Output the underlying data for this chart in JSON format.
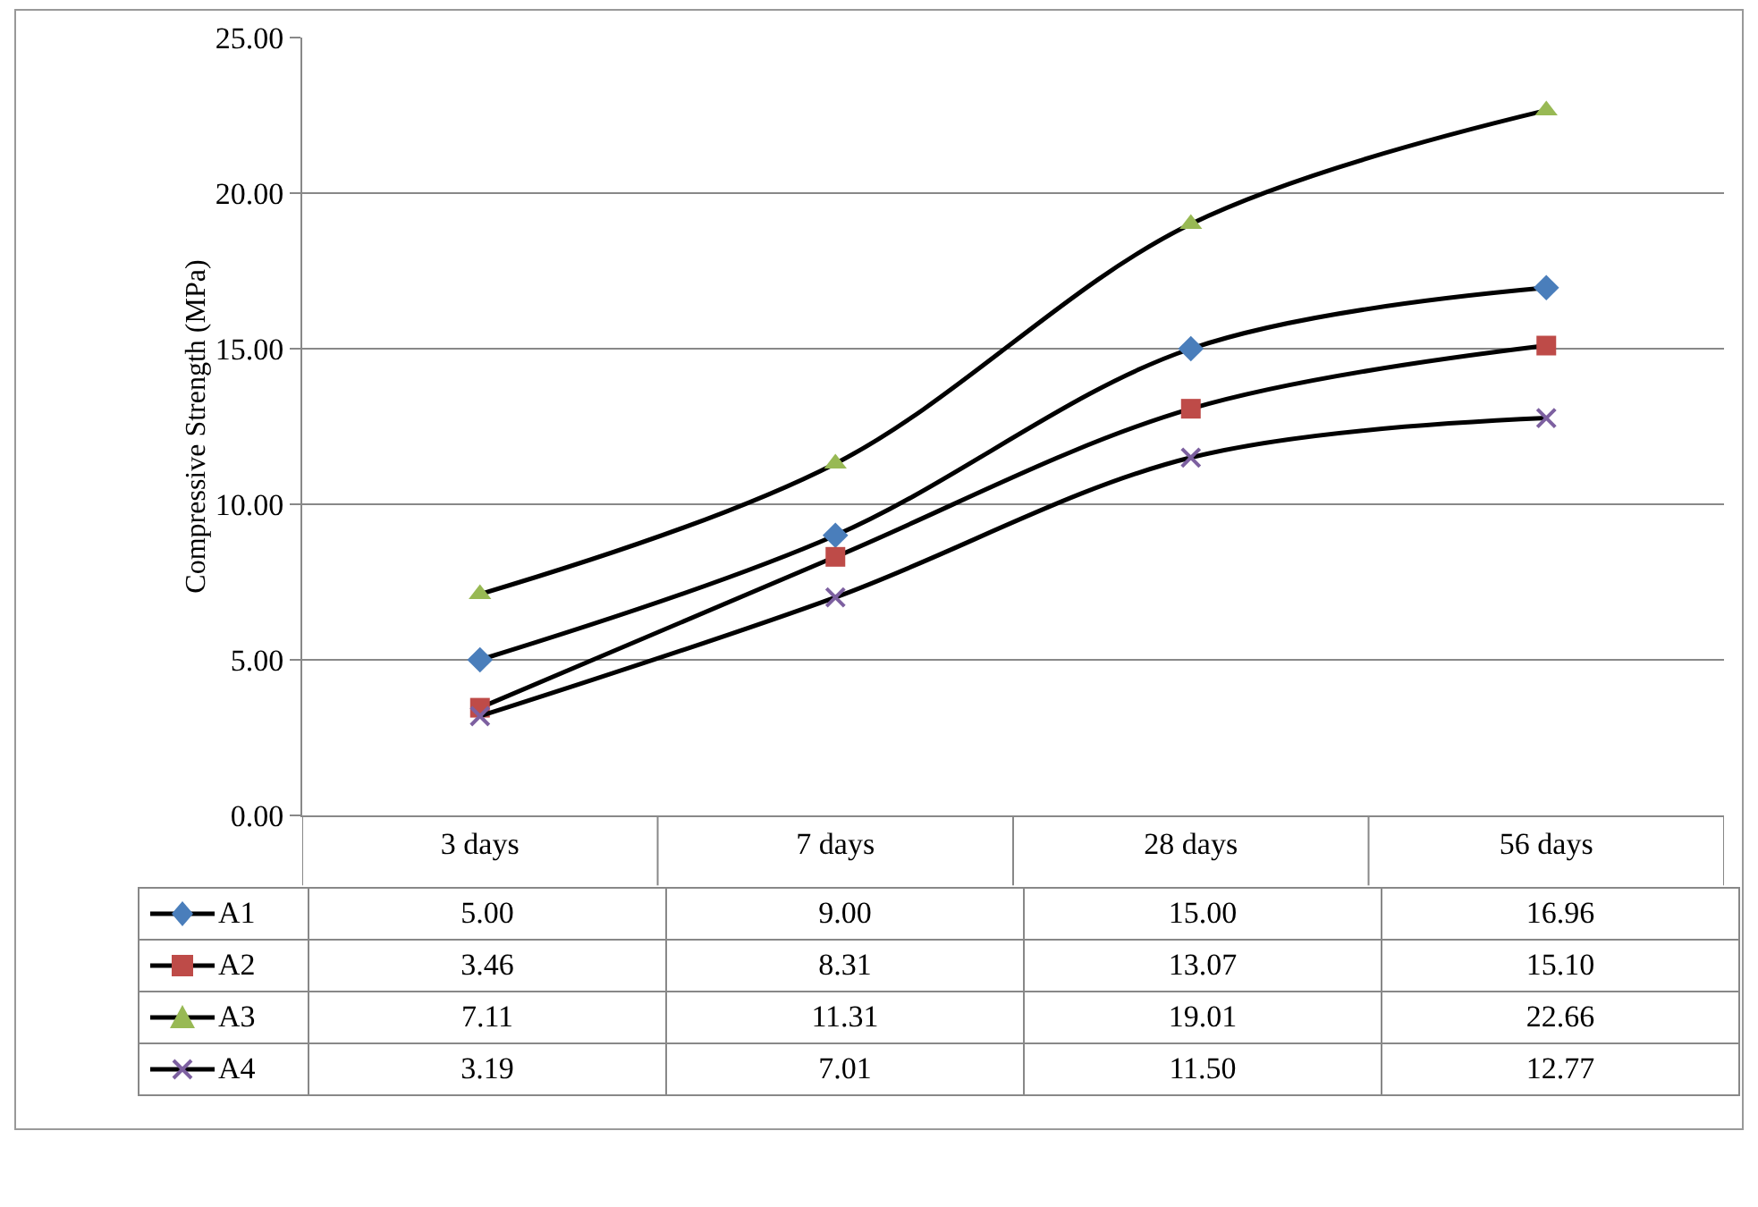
{
  "chart_data": {
    "type": "line",
    "ylabel": "Compressive Strength (MPa)",
    "categories": [
      "3 days",
      "7 days",
      "28 days",
      "56 days"
    ],
    "series": [
      {
        "name": "A1",
        "color": "#4a7ebb",
        "marker": "diamond",
        "values": [
          5.0,
          9.0,
          15.0,
          16.96
        ],
        "value_labels": [
          "5.00",
          "9.00",
          "15.00",
          "16.96"
        ]
      },
      {
        "name": "A2",
        "color": "#be4b48",
        "marker": "square",
        "values": [
          3.46,
          8.31,
          13.07,
          15.1
        ],
        "value_labels": [
          "3.46",
          "8.31",
          "13.07",
          "15.10"
        ]
      },
      {
        "name": "A3",
        "color": "#98b954",
        "marker": "triangle",
        "values": [
          7.11,
          11.31,
          19.01,
          22.66
        ],
        "value_labels": [
          "7.11",
          "11.31",
          "19.01",
          "22.66"
        ]
      },
      {
        "name": "A4",
        "color": "#7d60a0",
        "marker": "cross",
        "values": [
          3.19,
          7.01,
          11.5,
          12.77
        ],
        "value_labels": [
          "3.19",
          "7.01",
          "11.50",
          "12.77"
        ]
      }
    ],
    "ylim": [
      0,
      25
    ],
    "yticks": [
      {
        "value": 0,
        "label": "0.00"
      },
      {
        "value": 5,
        "label": "5.00"
      },
      {
        "value": 10,
        "label": "10.00"
      },
      {
        "value": 15,
        "label": "15.00"
      },
      {
        "value": 20,
        "label": "20.00"
      },
      {
        "value": 25,
        "label": "25.00"
      }
    ],
    "grid": "y",
    "legend": "bottom"
  }
}
